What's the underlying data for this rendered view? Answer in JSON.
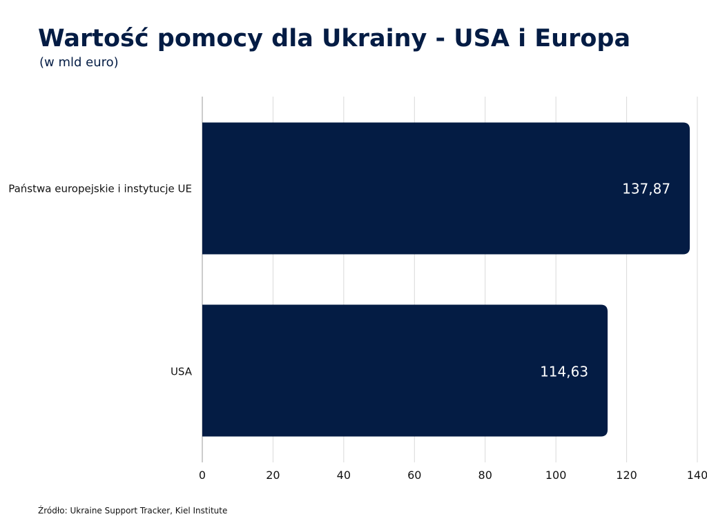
{
  "chart_data": {
    "type": "bar",
    "orientation": "horizontal",
    "title": "Wartość pomocy dla Ukrainy - USA i Europa",
    "subtitle": "(w mld euro)",
    "categories": [
      "Państwa europejskie i instytucje UE",
      "USA"
    ],
    "values": [
      137.87,
      114.63
    ],
    "value_labels": [
      "137,87",
      "114,63"
    ],
    "xlim": [
      0,
      140
    ],
    "xticks": [
      0,
      20,
      40,
      60,
      80,
      100,
      120,
      140
    ],
    "grid": true,
    "bar_color": "#041c44",
    "xlabel": "",
    "ylabel": ""
  },
  "source": "Źródło: Ukraine Support Tracker, Kiel Institute"
}
